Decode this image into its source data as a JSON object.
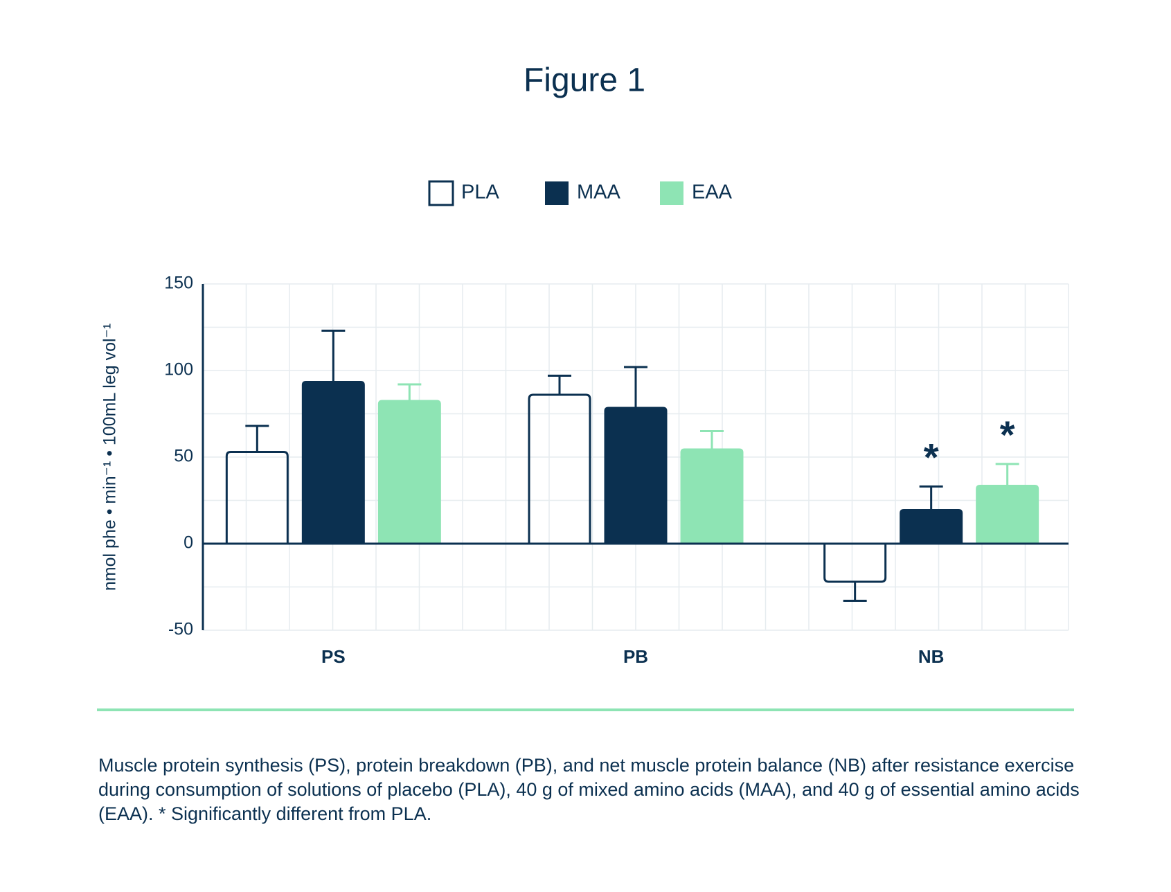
{
  "chart_data": {
    "type": "bar",
    "title": "Figure 1",
    "y_label": "nmol phe • min⁻¹ • 100mL leg vol⁻¹",
    "categories": [
      "PS",
      "PB",
      "NB"
    ],
    "series": [
      {
        "name": "PLA",
        "color": "#0b3050",
        "fill": "none",
        "values": [
          53,
          86,
          -22
        ],
        "errors": [
          15,
          11,
          11
        ],
        "annotations": [
          null,
          null,
          null
        ]
      },
      {
        "name": "MAA",
        "color": "#0b3050",
        "fill": "#0b3050",
        "values": [
          94,
          79,
          20
        ],
        "errors": [
          29,
          23,
          13
        ],
        "annotations": [
          null,
          null,
          "*"
        ]
      },
      {
        "name": "EAA",
        "color": "#8ee4b4",
        "fill": "#8ee4b4",
        "values": [
          83,
          55,
          34
        ],
        "errors": [
          9,
          10,
          12
        ],
        "annotations": [
          null,
          null,
          "*"
        ]
      }
    ],
    "ylim": [
      -50,
      150
    ],
    "yticks": [
      -50,
      0,
      50,
      100,
      150
    ],
    "minor_yticks": [
      -25,
      25,
      75,
      125
    ],
    "grid": true,
    "legend": "top",
    "caption": "Muscle protein synthesis (PS), protein breakdown (PB), and net muscle protein balance (NB) after resistance exercise during consumption of solutions of placebo (PLA), 40 g of mixed amino acids (MAA), and 40 g of essential amino acids (EAA). * Significantly different from PLA."
  }
}
